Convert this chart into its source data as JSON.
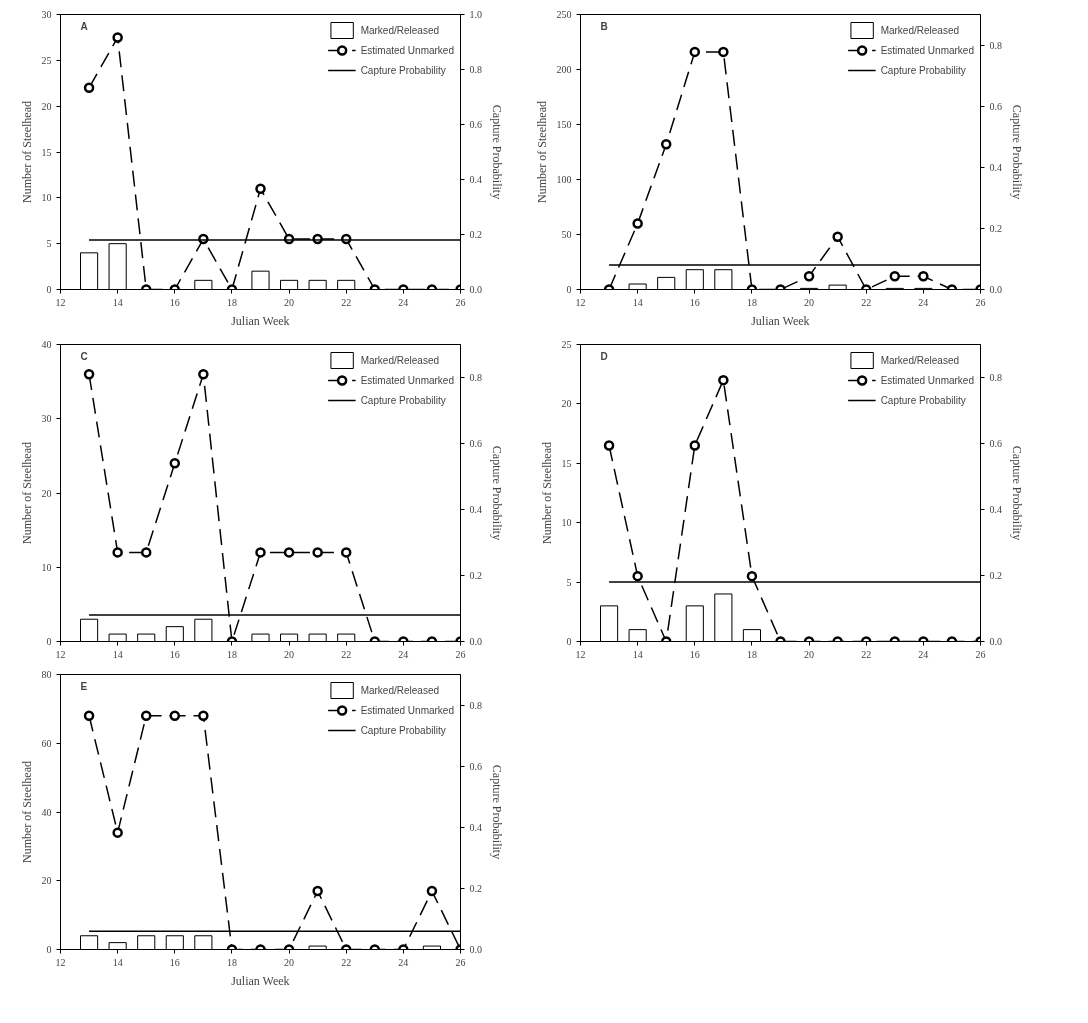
{
  "chart_data": [
    {
      "type": "bar",
      "annotations": [
        "A"
      ],
      "xlabel": "Julian Week",
      "ylabel": "Number of Steelhead",
      "y2label": "Capture Probability",
      "x": [
        13,
        14,
        15,
        16,
        17,
        18,
        19,
        20,
        21,
        22,
        23,
        24,
        25,
        26
      ],
      "xlim": [
        12,
        26
      ],
      "xticks": [
        12,
        14,
        16,
        18,
        20,
        22,
        24,
        26
      ],
      "ylim": [
        0,
        30
      ],
      "yticks": [
        0,
        5,
        10,
        15,
        20,
        25,
        30
      ],
      "y2lim": [
        0,
        1.0
      ],
      "y2ticks": [
        {
          "value": 0,
          "label": "0.0"
        },
        {
          "value": 0.2,
          "label": "0.2"
        },
        {
          "value": 0.4,
          "label": "0.4"
        },
        {
          "value": 0.6,
          "label": "0.6"
        },
        {
          "value": 0.8,
          "label": "0.8"
        },
        {
          "value": 1.0,
          "label": "1.0"
        }
      ],
      "legend": "top right",
      "series": [
        {
          "name": "Marked/Released",
          "color": "#ffffff",
          "values": [
            4,
            5,
            null,
            null,
            1,
            null,
            2,
            1,
            1,
            1,
            null,
            null,
            null,
            null
          ]
        },
        {
          "name": "Estimated Unmarked",
          "type": "line",
          "color": "#000000",
          "marker": "circle",
          "line_style": "dashed",
          "values": [
            22,
            27.5,
            0,
            0,
            5.5,
            0,
            11,
            5.5,
            5.5,
            5.5,
            0,
            0,
            0,
            0
          ]
        },
        {
          "name": "Capture Probability",
          "type": "line",
          "axis": "y2",
          "color": "#000000",
          "line_style": "solid",
          "values": [
            0.18,
            0.18,
            0.18,
            0.18,
            0.18,
            0.18,
            0.18,
            0.18,
            0.18,
            0.18,
            0.18,
            0.18,
            0.18,
            0.18
          ]
        }
      ]
    },
    {
      "type": "bar",
      "annotations": [
        "B"
      ],
      "xlabel": "Julian Week",
      "ylabel": "Number of Steelhead",
      "y2label": "Capture Probability",
      "x": [
        13,
        14,
        15,
        16,
        17,
        18,
        19,
        20,
        21,
        22,
        23,
        24,
        25,
        26
      ],
      "xlim": [
        12,
        26
      ],
      "xticks": [
        12,
        14,
        16,
        18,
        20,
        22,
        24,
        26
      ],
      "ylim": [
        0,
        250
      ],
      "yticks": [
        0,
        50,
        100,
        150,
        200,
        250
      ],
      "y2lim": [
        0,
        0.9
      ],
      "y2ticks": [
        {
          "value": 0,
          "label": "0.0"
        },
        {
          "value": 0.2,
          "label": "0.2"
        },
        {
          "value": 0.4,
          "label": "0.4"
        },
        {
          "value": 0.6,
          "label": "0.6"
        },
        {
          "value": 0.8,
          "label": "0.8"
        }
      ],
      "legend": "top right",
      "series": [
        {
          "name": "Marked/Released",
          "color": "#ffffff",
          "values": [
            null,
            5,
            11,
            18,
            18,
            null,
            null,
            1,
            4,
            null,
            1,
            1,
            null,
            null
          ]
        },
        {
          "name": "Estimated Unmarked",
          "type": "line",
          "color": "#000000",
          "marker": "circle",
          "line_style": "dashed",
          "values": [
            0,
            60,
            132,
            216,
            216,
            0,
            0,
            12,
            48,
            0,
            12,
            12,
            0,
            0
          ]
        },
        {
          "name": "Capture Probability",
          "type": "line",
          "axis": "y2",
          "color": "#000000",
          "line_style": "solid",
          "values": [
            0.08,
            0.08,
            0.08,
            0.08,
            0.08,
            0.08,
            0.08,
            0.08,
            0.08,
            0.08,
            0.08,
            0.08,
            0.08,
            0.08
          ]
        }
      ]
    },
    {
      "type": "bar",
      "annotations": [
        "C"
      ],
      "ylabel": "Number of Steelhead",
      "y2label": "Capture Probability",
      "x": [
        13,
        14,
        15,
        16,
        17,
        18,
        19,
        20,
        21,
        22,
        23,
        24,
        25,
        26
      ],
      "xlim": [
        12,
        26
      ],
      "xticks": [
        12,
        14,
        16,
        18,
        20,
        22,
        24,
        26
      ],
      "ylim": [
        0,
        40
      ],
      "yticks": [
        0,
        10,
        20,
        30,
        40
      ],
      "y2lim": [
        0,
        0.9
      ],
      "y2ticks": [
        {
          "value": 0,
          "label": "0.0"
        },
        {
          "value": 0.2,
          "label": "0.2"
        },
        {
          "value": 0.4,
          "label": "0.4"
        },
        {
          "value": 0.6,
          "label": "0.6"
        },
        {
          "value": 0.8,
          "label": "0.8"
        }
      ],
      "legend": "top right",
      "series": [
        {
          "name": "Marked/Released",
          "color": "#ffffff",
          "values": [
            3,
            1,
            1,
            2,
            3,
            null,
            1,
            1,
            1,
            1,
            null,
            null,
            null,
            null
          ]
        },
        {
          "name": "Estimated Unmarked",
          "type": "line",
          "color": "#000000",
          "marker": "circle",
          "line_style": "dashed",
          "values": [
            36,
            12,
            12,
            24,
            36,
            0,
            12,
            12,
            12,
            12,
            0,
            0,
            0,
            0
          ]
        },
        {
          "name": "Capture Probability",
          "type": "line",
          "axis": "y2",
          "color": "#000000",
          "line_style": "solid",
          "values": [
            0.08,
            0.08,
            0.08,
            0.08,
            0.08,
            0.08,
            0.08,
            0.08,
            0.08,
            0.08,
            0.08,
            0.08,
            0.08,
            0.08
          ]
        }
      ]
    },
    {
      "type": "bar",
      "annotations": [
        "D"
      ],
      "ylabel": "Number of Steelhead",
      "y2label": "Capture Probability",
      "x": [
        13,
        14,
        15,
        16,
        17,
        18,
        19,
        20,
        21,
        22,
        23,
        24,
        25,
        26
      ],
      "xlim": [
        12,
        26
      ],
      "xticks": [
        12,
        14,
        16,
        18,
        20,
        22,
        24,
        26
      ],
      "ylim": [
        0,
        25
      ],
      "yticks": [
        0,
        5,
        10,
        15,
        20,
        25
      ],
      "y2lim": [
        0,
        0.9
      ],
      "y2ticks": [
        {
          "value": 0,
          "label": "0.0"
        },
        {
          "value": 0.2,
          "label": "0.2"
        },
        {
          "value": 0.4,
          "label": "0.4"
        },
        {
          "value": 0.6,
          "label": "0.6"
        },
        {
          "value": 0.8,
          "label": "0.8"
        }
      ],
      "legend": "top right",
      "series": [
        {
          "name": "Marked/Released",
          "color": "#ffffff",
          "values": [
            3,
            1,
            null,
            3,
            4,
            1,
            null,
            null,
            null,
            null,
            null,
            null,
            null,
            null
          ]
        },
        {
          "name": "Estimated Unmarked",
          "type": "line",
          "color": "#000000",
          "marker": "circle",
          "line_style": "dashed",
          "values": [
            16.5,
            5.5,
            0,
            16.5,
            22,
            5.5,
            0,
            0,
            0,
            0,
            0,
            0,
            0,
            0
          ]
        },
        {
          "name": "Capture Probability",
          "type": "line",
          "axis": "y2",
          "color": "#000000",
          "line_style": "solid",
          "values": [
            0.18,
            0.18,
            0.18,
            0.18,
            0.18,
            0.18,
            0.18,
            0.18,
            0.18,
            0.18,
            0.18,
            0.18,
            0.18,
            0.18
          ]
        }
      ]
    },
    {
      "type": "bar",
      "annotations": [
        "E"
      ],
      "xlabel": "Julian Week",
      "ylabel": "Number of Steelhead",
      "y2label": "Capture Probability",
      "x": [
        13,
        14,
        15,
        16,
        17,
        18,
        19,
        20,
        21,
        22,
        23,
        24,
        25,
        26
      ],
      "xlim": [
        12,
        26
      ],
      "xticks": [
        12,
        14,
        16,
        18,
        20,
        22,
        24,
        26
      ],
      "ylim": [
        0,
        80
      ],
      "yticks": [
        0,
        20,
        40,
        60,
        80
      ],
      "y2lim": [
        0,
        0.9
      ],
      "y2ticks": [
        {
          "value": 0,
          "label": "0.0"
        },
        {
          "value": 0.2,
          "label": "0.2"
        },
        {
          "value": 0.4,
          "label": "0.4"
        },
        {
          "value": 0.6,
          "label": "0.6"
        },
        {
          "value": 0.8,
          "label": "0.8"
        }
      ],
      "legend": "top right",
      "series": [
        {
          "name": "Marked/Released",
          "color": "#ffffff",
          "values": [
            4,
            2,
            4,
            4,
            4,
            null,
            null,
            null,
            1,
            null,
            null,
            null,
            1,
            null
          ]
        },
        {
          "name": "Estimated Unmarked",
          "type": "line",
          "color": "#000000",
          "marker": "circle",
          "line_style": "dashed",
          "values": [
            68,
            34,
            68,
            68,
            68,
            0,
            0,
            0,
            17,
            0,
            0,
            0,
            17,
            0
          ]
        },
        {
          "name": "Capture Probability",
          "type": "line",
          "axis": "y2",
          "color": "#000000",
          "line_style": "solid",
          "values": [
            0.06,
            0.06,
            0.06,
            0.06,
            0.06,
            0.06,
            0.06,
            0.06,
            0.06,
            0.06,
            0.06,
            0.06,
            0.06,
            0.06
          ]
        }
      ]
    }
  ]
}
